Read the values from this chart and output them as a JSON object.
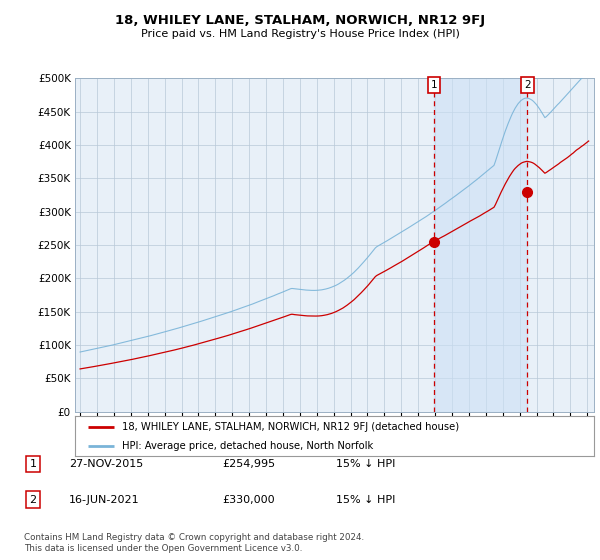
{
  "title": "18, WHILEY LANE, STALHAM, NORWICH, NR12 9FJ",
  "subtitle": "Price paid vs. HM Land Registry's House Price Index (HPI)",
  "legend_line1": "18, WHILEY LANE, STALHAM, NORWICH, NR12 9FJ (detached house)",
  "legend_line2": "HPI: Average price, detached house, North Norfolk",
  "footnote": "Contains HM Land Registry data © Crown copyright and database right 2024.\nThis data is licensed under the Open Government Licence v3.0.",
  "marker1_label": "1",
  "marker1_date": "27-NOV-2015",
  "marker1_price": "£254,995",
  "marker1_note": "15% ↓ HPI",
  "marker2_label": "2",
  "marker2_date": "16-JUN-2021",
  "marker2_price": "£330,000",
  "marker2_note": "15% ↓ HPI",
  "hpi_color": "#7ab4d8",
  "hpi_fill_color": "#ddeeff",
  "price_color": "#cc0000",
  "marker_color": "#cc0000",
  "plot_bg_color": "#e8f0f8",
  "ylim": [
    0,
    500000
  ],
  "yticks": [
    0,
    50000,
    100000,
    150000,
    200000,
    250000,
    300000,
    350000,
    400000,
    450000,
    500000
  ],
  "sale1_year": 2015.92,
  "sale1_value": 254995,
  "sale2_year": 2021.46,
  "sale2_value": 330000
}
